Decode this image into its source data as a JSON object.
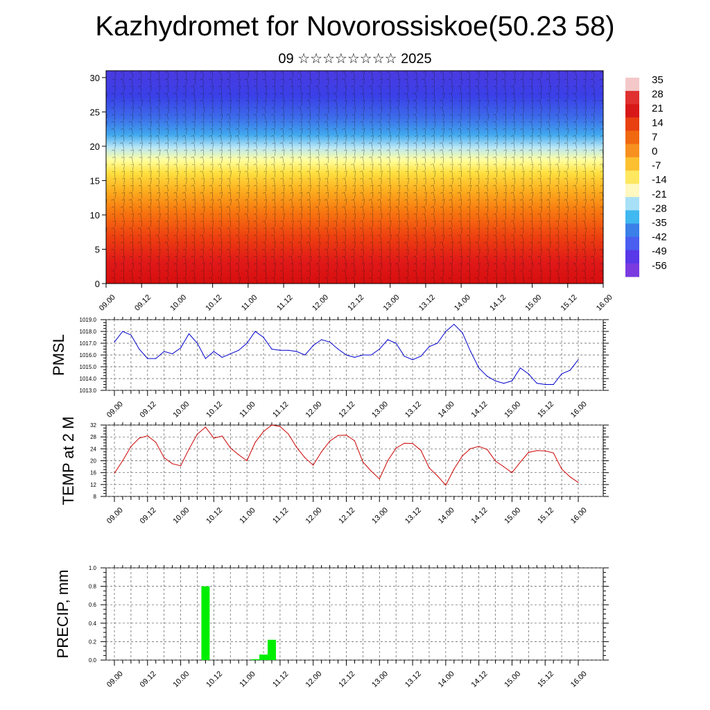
{
  "title": "Kazhydromet for Novorossiskoe(50.23 58)",
  "subtitle": "09 ☆☆☆☆☆☆☆☆ 2025",
  "time_ticks": [
    "09.00",
    "09.12",
    "10.00",
    "10.12",
    "11.00",
    "11.12",
    "12.00",
    "12.12",
    "13.00",
    "13.12",
    "14.00",
    "14.12",
    "15.00",
    "15.12",
    "16.00"
  ],
  "chart_data": [
    {
      "type": "heatmap",
      "name": "upper-air temperature and wind cross-section",
      "y_ticks": [
        "0",
        "5",
        "10",
        "15",
        "20",
        "25",
        "30"
      ],
      "ylim": [
        0,
        31
      ],
      "colorbar": {
        "labels": [
          "35",
          "28",
          "21",
          "14",
          "7",
          "0",
          "-7",
          "-14",
          "-21",
          "-28",
          "-35",
          "-42",
          "-49",
          "-56"
        ],
        "colors_top_to_bottom": [
          "#f4c8c8",
          "#e03030",
          "#d81818",
          "#e84010",
          "#f06810",
          "#f89020",
          "#fcc030",
          "#ffe860",
          "#fff8c0",
          "#a8e0f8",
          "#40b8f0",
          "#3a80e8",
          "#4a5ef0",
          "#5838e8",
          "#7a3ae0"
        ]
      },
      "ylabel": "",
      "xlabel": ""
    },
    {
      "type": "line",
      "ylabel": "PMSL",
      "ylim": [
        1013.0,
        1019.0
      ],
      "y_ticks": [
        "1013.0",
        "1014.0",
        "1015.0",
        "1016.0",
        "1017.0",
        "1018.0",
        "1019.0"
      ],
      "color": "#0000cc",
      "values": [
        1017.1,
        1018.0,
        1017.7,
        1016.5,
        1015.7,
        1015.7,
        1016.3,
        1016.1,
        1016.6,
        1017.8,
        1017.0,
        1015.7,
        1016.3,
        1015.8,
        1016.1,
        1016.4,
        1017.0,
        1018.0,
        1017.5,
        1016.5,
        1016.4,
        1016.4,
        1016.3,
        1016.0,
        1016.8,
        1017.3,
        1017.1,
        1016.5,
        1016.0,
        1015.8,
        1016.0,
        1016.0,
        1016.5,
        1017.3,
        1017.0,
        1015.9,
        1015.6,
        1015.9,
        1016.7,
        1017.0,
        1018.0,
        1018.6,
        1017.9,
        1016.3,
        1014.9,
        1014.2,
        1013.8,
        1013.6,
        1013.8,
        1014.9,
        1014.4,
        1013.6,
        1013.5,
        1013.5,
        1014.4,
        1014.7,
        1015.6
      ]
    },
    {
      "type": "line",
      "ylabel": "TEMP at 2 M",
      "ylim": [
        8,
        32
      ],
      "y_ticks": [
        "8",
        "12",
        "16",
        "20",
        "24",
        "28",
        "32"
      ],
      "color": "#cc0000",
      "values": [
        15.8,
        20.0,
        24.8,
        27.6,
        28.4,
        26.2,
        21.0,
        19.0,
        18.3,
        23.9,
        28.9,
        31.3,
        27.6,
        28.3,
        24.3,
        22.0,
        20.0,
        26.2,
        29.8,
        32.0,
        31.5,
        29.0,
        24.5,
        21.0,
        18.5,
        23.0,
        26.6,
        28.5,
        28.6,
        26.7,
        19.6,
        16.5,
        13.9,
        20.0,
        24.2,
        25.9,
        25.8,
        23.5,
        17.6,
        14.9,
        11.8,
        17.2,
        21.6,
        24.1,
        24.8,
        23.8,
        19.9,
        18.0,
        16.0,
        19.5,
        22.8,
        23.4,
        23.3,
        22.6,
        17.2,
        14.6,
        12.7
      ]
    },
    {
      "type": "bar",
      "ylabel": "PRECIP, mm",
      "ylim": [
        0.0,
        1.0
      ],
      "y_ticks": [
        "0.0",
        "0.2",
        "0.4",
        "0.6",
        "0.8",
        "1.0"
      ],
      "color": "#00ee00",
      "values": [
        0,
        0,
        0,
        0,
        0,
        0,
        0,
        0,
        0,
        0,
        0,
        0.8,
        0,
        0,
        0,
        0,
        0,
        0.01,
        0.06,
        0.22,
        0,
        0,
        0,
        0,
        0,
        0,
        0,
        0,
        0,
        0,
        0,
        0,
        0,
        0,
        0,
        0,
        0,
        0,
        0,
        0,
        0,
        0,
        0,
        0,
        0,
        0,
        0,
        0,
        0,
        0,
        0,
        0,
        0,
        0,
        0,
        0,
        0
      ]
    }
  ]
}
